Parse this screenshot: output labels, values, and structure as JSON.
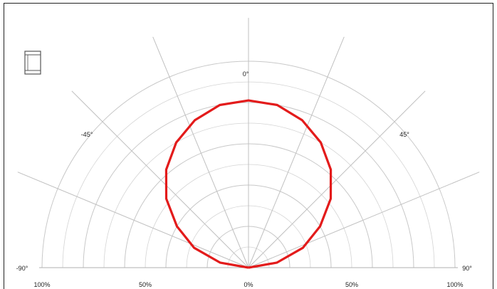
{
  "chart_data": {
    "type": "polar",
    "angle_labels": [
      {
        "angle": 0,
        "text": "0°"
      },
      {
        "angle": -45,
        "text": "-45°"
      },
      {
        "angle": 45,
        "text": "45°"
      },
      {
        "angle": -90,
        "text": "-90°"
      },
      {
        "angle": 90,
        "text": "90°"
      }
    ],
    "radial_labels": [
      {
        "side": "left",
        "value": 100,
        "text": "100%"
      },
      {
        "side": "left",
        "value": 50,
        "text": "50%"
      },
      {
        "side": "center",
        "value": 0,
        "text": "0%"
      },
      {
        "side": "right",
        "value": 50,
        "text": "50%"
      },
      {
        "side": "right",
        "value": 100,
        "text": "100%"
      }
    ],
    "angle_range": [
      -90,
      90
    ],
    "radial_range": [
      0,
      100
    ],
    "rings": [
      20,
      40,
      60,
      80,
      100
    ],
    "spokes": [
      -90,
      -67.5,
      -45,
      -22.5,
      0,
      22.5,
      45,
      67.5,
      90
    ],
    "series": [
      {
        "color": "#e31b1b",
        "angles": [
          -90,
          -80,
          -70,
          -60,
          -50,
          -40,
          -30,
          -20,
          -10,
          0,
          10,
          20,
          30,
          40,
          50,
          60,
          70,
          80,
          90
        ],
        "values": [
          0,
          14,
          28,
          40,
          52,
          62,
          70,
          76,
          80,
          81,
          80,
          76,
          70,
          62,
          52,
          40,
          28,
          14,
          0
        ]
      }
    ],
    "legend_icon": "luminaire-icon"
  }
}
